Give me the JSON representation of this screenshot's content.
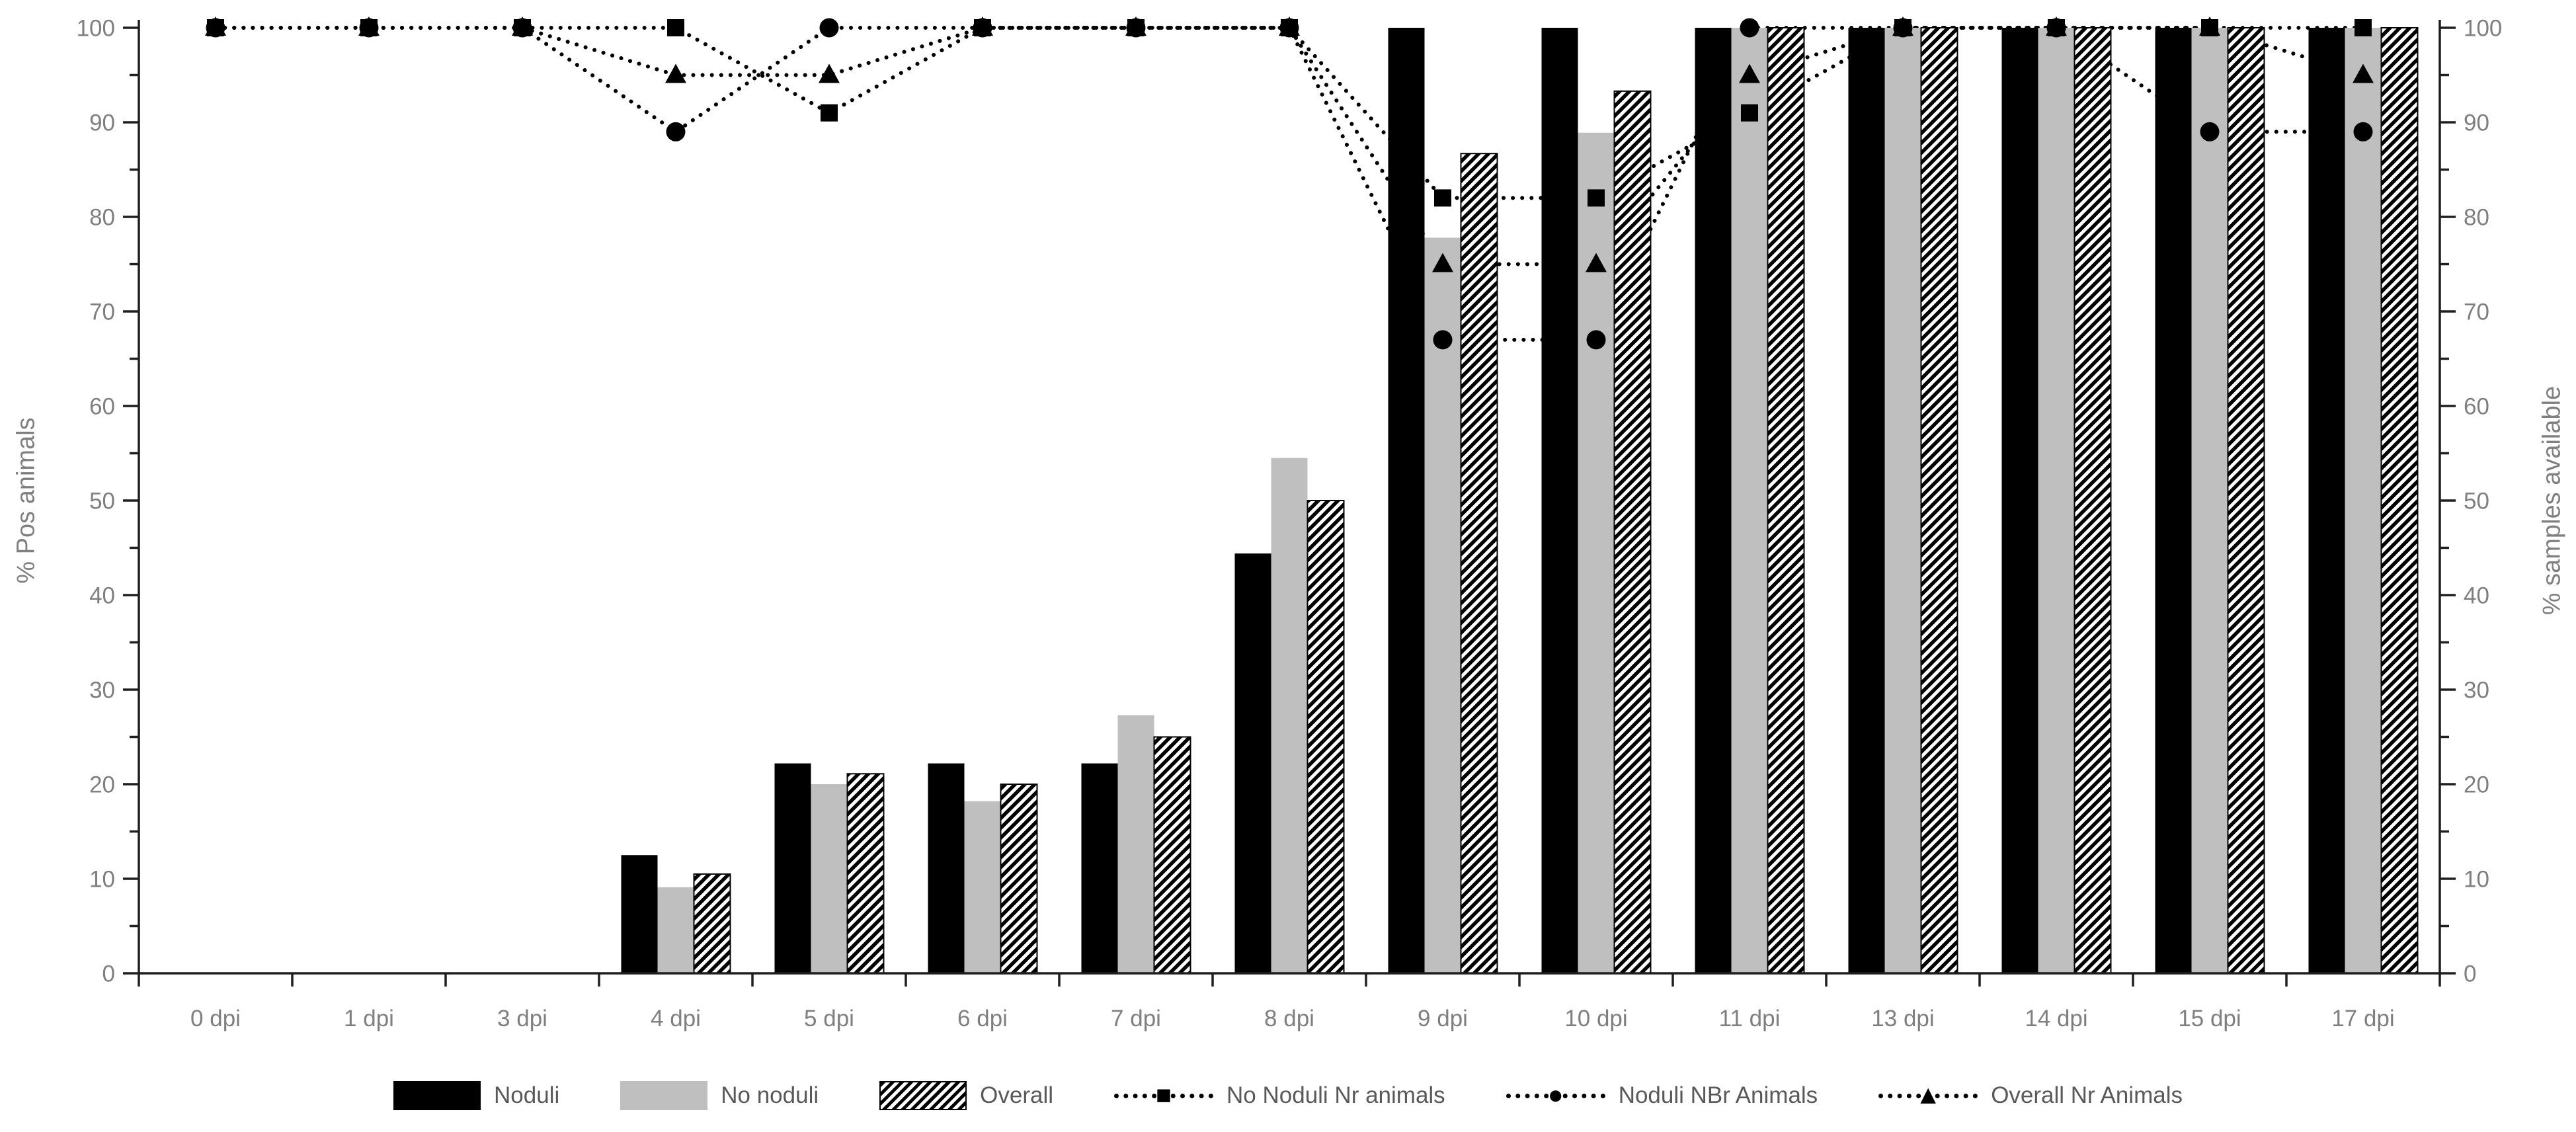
{
  "chart_data": {
    "type": "bar+line",
    "categories": [
      "0 dpi",
      "1 dpi",
      "3 dpi",
      "4 dpi",
      "5 dpi",
      "6 dpi",
      "7 dpi",
      "8 dpi",
      "9 dpi",
      "10 dpi",
      "11 dpi",
      "13 dpi",
      "14 dpi",
      "15 dpi",
      "17 dpi"
    ],
    "bar_series": [
      {
        "name": "Noduli",
        "style": "solid-black",
        "values": [
          0,
          0,
          0,
          12.5,
          22.2,
          22.2,
          22.2,
          44.4,
          100,
          100,
          100,
          100,
          100,
          100,
          100
        ]
      },
      {
        "name": "No noduli",
        "style": "solid-gray",
        "values": [
          0,
          0,
          0,
          9.1,
          20,
          18.2,
          27.3,
          54.5,
          77.8,
          88.9,
          100,
          100,
          100,
          100,
          100
        ]
      },
      {
        "name": "Overall",
        "style": "hatched",
        "values": [
          0,
          0,
          0,
          10.5,
          21.1,
          20,
          25,
          50,
          86.7,
          93.3,
          100,
          100,
          100,
          100,
          100
        ]
      }
    ],
    "line_series": [
      {
        "name": "No Noduli Nr animals",
        "marker": "square",
        "values": [
          100,
          100,
          100,
          100,
          91,
          100,
          100,
          100,
          82,
          82,
          91,
          100,
          100,
          100,
          100
        ]
      },
      {
        "name": "Noduli NBr Animals",
        "marker": "circle",
        "values": [
          100,
          100,
          100,
          89,
          100,
          100,
          100,
          100,
          67,
          67,
          100,
          100,
          100,
          89,
          89
        ]
      },
      {
        "name": "Overall Nr Animals",
        "marker": "triangle",
        "values": [
          100,
          100,
          100,
          95,
          95,
          100,
          100,
          100,
          75,
          75,
          95,
          100,
          100,
          100,
          95
        ]
      }
    ],
    "left_axis": {
      "label": "% Pos animals",
      "min": 0,
      "max": 100,
      "major_tick": 10,
      "minor_tick": 5
    },
    "right_axis": {
      "label": "% samples available",
      "min": 0,
      "max": 100,
      "major_tick": 10,
      "minor_tick": 5
    },
    "legend_position": "bottom",
    "grid": false,
    "line_style": "dotted",
    "colors": {
      "bar_black": "#000000",
      "bar_gray": "#bfbfbf",
      "hatch_fg": "#000000",
      "hatch_bg": "#ffffff",
      "line": "#000000",
      "axis_line": "#1f1f1f",
      "tick_label": "#7f7f7f",
      "axis_title": "#7f7f7f",
      "legend_text": "#595959",
      "background": "#ffffff"
    }
  }
}
